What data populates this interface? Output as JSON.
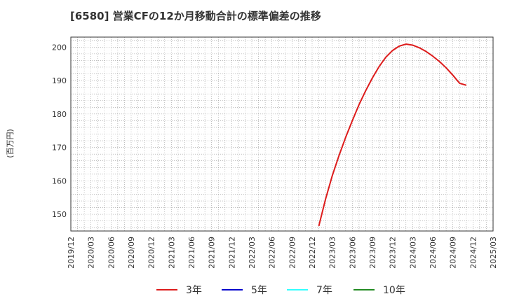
{
  "chart_data": {
    "type": "line",
    "title": "[6580]  営業CFの12か月移動合計の標準偏差の推移",
    "ylabel": "(百万円)",
    "xlabel": "",
    "ylim": [
      145,
      203
    ],
    "yticks": [
      150,
      160,
      170,
      180,
      190,
      200
    ],
    "grid": true,
    "x_categories": [
      "2019/12",
      "2020/03",
      "2020/06",
      "2020/09",
      "2020/12",
      "2021/03",
      "2021/06",
      "2021/09",
      "2021/12",
      "2022/03",
      "2022/06",
      "2022/09",
      "2022/12",
      "2023/03",
      "2023/06",
      "2023/09",
      "2023/12",
      "2024/03",
      "2024/06",
      "2024/09",
      "2024/12",
      "2025/03"
    ],
    "legend_position": "bottom",
    "series": [
      {
        "name": "3年",
        "color": "#dd1c1c",
        "points": [
          [
            "2023/01",
            146.5
          ],
          [
            "2023/02",
            154.5
          ],
          [
            "2023/03",
            161.5
          ],
          [
            "2023/04",
            167.5
          ],
          [
            "2023/05",
            173.0
          ],
          [
            "2023/06",
            178.0
          ],
          [
            "2023/07",
            182.8
          ],
          [
            "2023/08",
            187.0
          ],
          [
            "2023/09",
            190.8
          ],
          [
            "2023/10",
            194.2
          ],
          [
            "2023/11",
            197.0
          ],
          [
            "2023/12",
            199.0
          ],
          [
            "2024/01",
            200.3
          ],
          [
            "2024/02",
            200.9
          ],
          [
            "2024/03",
            200.6
          ],
          [
            "2024/04",
            199.8
          ],
          [
            "2024/05",
            198.7
          ],
          [
            "2024/06",
            197.3
          ],
          [
            "2024/07",
            195.7
          ],
          [
            "2024/08",
            193.8
          ],
          [
            "2024/09",
            191.6
          ],
          [
            "2024/10",
            189.2
          ],
          [
            "2024/11",
            188.6
          ]
        ]
      },
      {
        "name": "5年",
        "color": "#0000cc",
        "points": []
      },
      {
        "name": "7年",
        "color": "#33ffff",
        "points": []
      },
      {
        "name": "10年",
        "color": "#228b22",
        "points": []
      }
    ]
  }
}
